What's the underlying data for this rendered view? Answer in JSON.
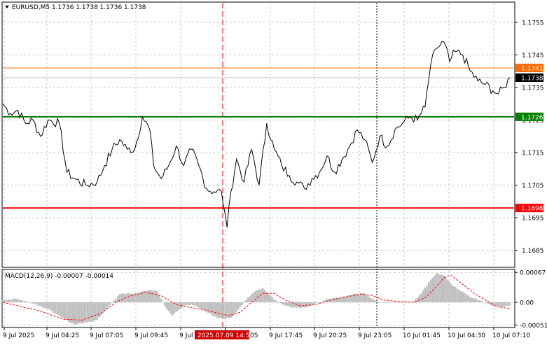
{
  "header": {
    "symbol_line": "EURUSD,M5  1.1736 1.1738 1.1736 1.1738"
  },
  "macd_header": {
    "label": "MACD(12,26,9) -0.00007 -0.00014"
  },
  "colors": {
    "price_line": "#000000",
    "grid": "#c8c8c8",
    "orange_line": "#ff6a00",
    "green_line": "#008000",
    "red_line": "#ff0000",
    "current_line": "#c0c0c0",
    "histogram": "#c0c0c0",
    "signal": "#ff0000",
    "cursor_vline": "#d00000",
    "date_badge_bg": "#d00000"
  },
  "chart_data": [
    {
      "type": "line",
      "title": "EURUSD,M5",
      "ylim": [
        1.168,
        1.1761
      ],
      "y_ticks": [
        "1.1755",
        "1.1745",
        "1.1735",
        "1.1725",
        "1.1715",
        "1.1705",
        "1.1695",
        "1.1685"
      ],
      "x_ticks": [
        "9 Jul 2025",
        "9 Jul 04:25",
        "9 Jul 07:05",
        "9 Jul 09:45",
        "9 Jul",
        "2025.07.09 14:50",
        "9 Jul 17:45",
        "9 Jul 20:25",
        "9 Jul 23:05",
        "10 Jul 01:45",
        "10 Jul 04:30",
        "10 Jul 07:10"
      ],
      "n_bars": 270,
      "series": [
        {
          "name": "EURUSD close",
          "points": [
            [
              0,
              1.173
            ],
            [
              4,
              1.1727
            ],
            [
              8,
              1.1728
            ],
            [
              12,
              1.1724
            ],
            [
              16,
              1.1725
            ],
            [
              20,
              1.172
            ],
            [
              24,
              1.1725
            ],
            [
              30,
              1.1724
            ],
            [
              34,
              1.1709
            ],
            [
              38,
              1.1707
            ],
            [
              44,
              1.1705
            ],
            [
              50,
              1.1706
            ],
            [
              54,
              1.1711
            ],
            [
              58,
              1.1716
            ],
            [
              62,
              1.1719
            ],
            [
              66,
              1.1716
            ],
            [
              70,
              1.1716
            ],
            [
              74,
              1.1726
            ],
            [
              78,
              1.1722
            ],
            [
              80,
              1.1711
            ],
            [
              84,
              1.1707
            ],
            [
              88,
              1.1711
            ],
            [
              92,
              1.1717
            ],
            [
              96,
              1.1711
            ],
            [
              100,
              1.1716
            ],
            [
              104,
              1.1711
            ],
            [
              108,
              1.1704
            ],
            [
              112,
              1.1703
            ],
            [
              116,
              1.1703
            ],
            [
              118,
              1.1696
            ],
            [
              119,
              1.1692
            ],
            [
              121,
              1.1703
            ],
            [
              124,
              1.1713
            ],
            [
              128,
              1.1706
            ],
            [
              132,
              1.1716
            ],
            [
              136,
              1.1705
            ],
            [
              140,
              1.1724
            ],
            [
              144,
              1.1716
            ],
            [
              148,
              1.1711
            ],
            [
              152,
              1.1708
            ],
            [
              156,
              1.1706
            ],
            [
              160,
              1.1704
            ],
            [
              164,
              1.1707
            ],
            [
              168,
              1.1709
            ],
            [
              172,
              1.1714
            ],
            [
              176,
              1.1709
            ],
            [
              180,
              1.1713
            ],
            [
              184,
              1.1717
            ],
            [
              188,
              1.1722
            ],
            [
              192,
              1.1719
            ],
            [
              196,
              1.1712
            ],
            [
              200,
              1.172
            ],
            [
              204,
              1.1717
            ],
            [
              208,
              1.1722
            ],
            [
              212,
              1.1724
            ],
            [
              216,
              1.1726
            ],
            [
              220,
              1.1725
            ],
            [
              224,
              1.1729
            ],
            [
              227,
              1.1742
            ],
            [
              230,
              1.1747
            ],
            [
              234,
              1.1749
            ],
            [
              237,
              1.1743
            ],
            [
              240,
              1.1746
            ],
            [
              244,
              1.1745
            ],
            [
              248,
              1.174
            ],
            [
              252,
              1.1737
            ],
            [
              256,
              1.1736
            ],
            [
              260,
              1.1734
            ],
            [
              263,
              1.1733
            ],
            [
              266,
              1.1735
            ],
            [
              269,
              1.1738
            ]
          ]
        }
      ],
      "levels": [
        {
          "name": "resistance",
          "value": 1.1741,
          "label": "1.1741",
          "color": "#ff6a00"
        },
        {
          "name": "support",
          "value": 1.1726,
          "label": "1.1726",
          "color": "#008000"
        },
        {
          "name": "low-level",
          "value": 1.1698,
          "label": "1.1698",
          "color": "#ff0000"
        }
      ],
      "current_price": {
        "value": 1.1738,
        "label": "1.1738"
      }
    },
    {
      "type": "bar",
      "title": "MACD(12,26,9)",
      "ylim": [
        -0.00055,
        0.00072
      ],
      "y_ticks": [
        "0.00067",
        "0.00",
        "-0.00051"
      ],
      "series": [
        {
          "name": "histogram",
          "points": [
            [
              0,
              5e-05
            ],
            [
              8,
              8e-05
            ],
            [
              16,
              -3e-05
            ],
            [
              24,
              -0.00015
            ],
            [
              30,
              -0.0003
            ],
            [
              38,
              -0.0005
            ],
            [
              44,
              -0.00045
            ],
            [
              50,
              -0.0004
            ],
            [
              56,
              -0.0001
            ],
            [
              62,
              0.00018
            ],
            [
              70,
              0.0002
            ],
            [
              78,
              0.00028
            ],
            [
              82,
              0.00025
            ],
            [
              86,
              -0.0001
            ],
            [
              90,
              -0.0003
            ],
            [
              96,
              -8e-05
            ],
            [
              100,
              -5e-05
            ],
            [
              104,
              -0.00012
            ],
            [
              110,
              -0.00025
            ],
            [
              114,
              -0.00036
            ],
            [
              118,
              -0.00038
            ],
            [
              122,
              -0.00032
            ],
            [
              126,
              -0.0001
            ],
            [
              130,
              0.0001
            ],
            [
              134,
              0.00025
            ],
            [
              138,
              0.00032
            ],
            [
              142,
              0.00015
            ],
            [
              146,
              0.0
            ],
            [
              150,
              -8e-05
            ],
            [
              156,
              -0.00012
            ],
            [
              162,
              -0.0001
            ],
            [
              168,
              0.0
            ],
            [
              174,
              8e-05
            ],
            [
              180,
              0.00012
            ],
            [
              186,
              0.00018
            ],
            [
              192,
              0.0002
            ],
            [
              196,
              8e-05
            ],
            [
              200,
              0.0
            ],
            [
              206,
              0.0
            ],
            [
              212,
              0.0
            ],
            [
              218,
              2e-05
            ],
            [
              222,
              0.0002
            ],
            [
              226,
              0.00045
            ],
            [
              230,
              0.00065
            ],
            [
              234,
              0.0006
            ],
            [
              238,
              0.0004
            ],
            [
              242,
              0.00028
            ],
            [
              248,
              0.00012
            ],
            [
              254,
              3e-05
            ],
            [
              260,
              -8e-05
            ],
            [
              266,
              -0.0001
            ],
            [
              269,
              -7e-05
            ]
          ]
        },
        {
          "name": "signal",
          "points": [
            [
              0,
              0.0
            ],
            [
              10,
              -0.0001
            ],
            [
              20,
              -0.0002
            ],
            [
              32,
              -0.00038
            ],
            [
              42,
              -0.0004
            ],
            [
              52,
              -0.00025
            ],
            [
              60,
              0.0
            ],
            [
              68,
              0.00015
            ],
            [
              76,
              0.00022
            ],
            [
              84,
              0.00015
            ],
            [
              92,
              -5e-05
            ],
            [
              100,
              -0.00012
            ],
            [
              108,
              -0.00018
            ],
            [
              114,
              -0.00024
            ],
            [
              120,
              -0.0003
            ],
            [
              126,
              -0.00022
            ],
            [
              132,
              0.0
            ],
            [
              138,
              0.0002
            ],
            [
              144,
              0.0002
            ],
            [
              150,
              5e-05
            ],
            [
              158,
              -8e-05
            ],
            [
              166,
              -5e-05
            ],
            [
              174,
              5e-05
            ],
            [
              182,
              0.00012
            ],
            [
              190,
              0.00018
            ],
            [
              196,
              0.00015
            ],
            [
              202,
              5e-05
            ],
            [
              210,
              2e-05
            ],
            [
              218,
              0.0
            ],
            [
              224,
              0.0001
            ],
            [
              230,
              0.00035
            ],
            [
              234,
              0.00055
            ],
            [
              238,
              0.0006
            ],
            [
              244,
              0.0004
            ],
            [
              250,
              0.0002
            ],
            [
              256,
              5e-05
            ],
            [
              262,
              -0.0001
            ],
            [
              269,
              -0.00014
            ]
          ]
        }
      ]
    }
  ]
}
